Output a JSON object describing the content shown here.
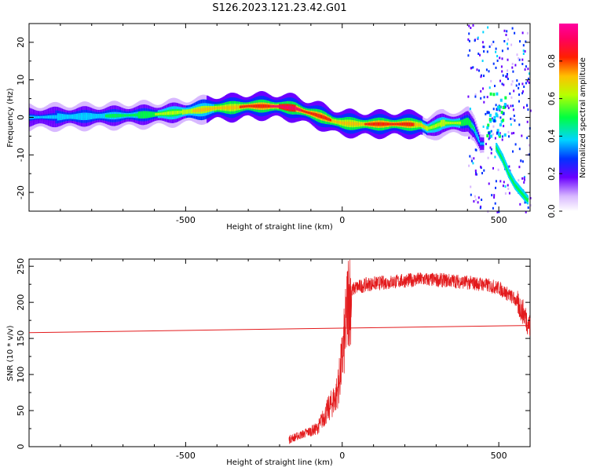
{
  "title": "S126.2023.121.23.42.G01",
  "chart_data": [
    {
      "type": "heatmap",
      "name": "spectrogram",
      "xlabel": "Height of straight line (km)",
      "ylabel": "Frequency (Hz)",
      "xlim": [
        -1000,
        600
      ],
      "ylim": [
        -25,
        25
      ],
      "xticks": [
        -500,
        0,
        500
      ],
      "yticks": [
        -20,
        -10,
        0,
        10,
        20
      ],
      "colorbar": {
        "label": "Normalized spectral amplitude",
        "range": [
          0,
          1
        ],
        "ticks": [
          0.0,
          0.2,
          0.4,
          0.6,
          0.8
        ]
      },
      "ridge": {
        "x": [
          -1000,
          -850,
          -700,
          -600,
          -500,
          -400,
          -350,
          -300,
          -250,
          -200,
          -150,
          -120,
          -90,
          -60,
          -30,
          0,
          50,
          100,
          200,
          250,
          270,
          290,
          320,
          380,
          400,
          420,
          440
        ],
        "y": [
          0,
          0.2,
          0.5,
          0.8,
          1.5,
          2.5,
          2.6,
          3.0,
          3.0,
          2.9,
          2.4,
          1.5,
          0.8,
          0,
          -1.0,
          -1.5,
          -1.8,
          -1.8,
          -1.8,
          -2.0,
          -3.0,
          -2.5,
          -1.5,
          -1.5,
          -1.0,
          -3.0,
          -7.0
        ],
        "amplitude": [
          0.3,
          0.35,
          0.4,
          0.5,
          0.6,
          0.7,
          0.7,
          0.75,
          0.8,
          0.85,
          0.85,
          0.8,
          0.8,
          0.8,
          0.7,
          0.7,
          0.7,
          0.75,
          0.75,
          0.7,
          0.6,
          0.55,
          0.6,
          0.5,
          0.5,
          0.4,
          0.3
        ]
      },
      "lower_branch": {
        "x": [
          490,
          510,
          530,
          550,
          570,
          590
        ],
        "y": [
          -8,
          -11,
          -15,
          -18,
          -20,
          -22
        ]
      }
    },
    {
      "type": "line",
      "name": "snr",
      "xlabel": "Height of straight line (km)",
      "ylabel": "SNR (10 * v/v)",
      "xlim": [
        -1000,
        600
      ],
      "ylim": [
        0,
        260
      ],
      "xticks": [
        -500,
        0,
        500
      ],
      "yticks": [
        0,
        50,
        100,
        150,
        200,
        250
      ],
      "colors": {
        "data": "#e31a1c",
        "trend": "#e31a1c"
      },
      "series": [
        {
          "x": [
            -170,
            -140,
            -110,
            -80,
            -60,
            -40,
            -20,
            -10,
            0,
            10,
            20,
            40,
            80,
            150,
            250,
            350,
            450,
            500,
            550,
            580,
            600
          ],
          "y": [
            10,
            15,
            20,
            25,
            40,
            55,
            70,
            90,
            120,
            160,
            210,
            220,
            225,
            228,
            232,
            230,
            225,
            220,
            205,
            185,
            165
          ]
        },
        {
          "x": [
            -1000,
            600
          ],
          "y": [
            158,
            168
          ]
        }
      ]
    }
  ]
}
